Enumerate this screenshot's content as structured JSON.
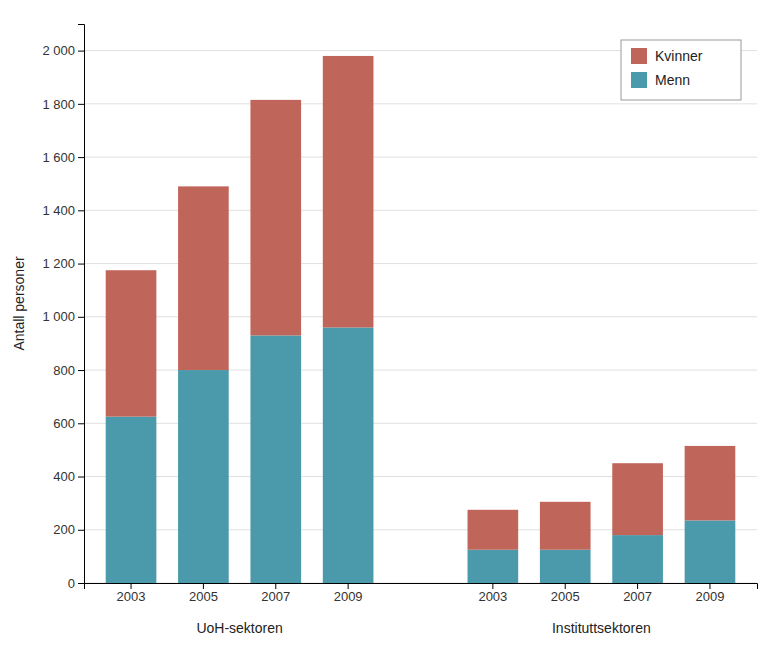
{
  "chart_data": {
    "type": "bar",
    "stacked": true,
    "categories": [
      "2003",
      "2005",
      "2007",
      "2009",
      "2003",
      "2005",
      "2007",
      "2009"
    ],
    "groups": [
      "UoH-sektoren",
      "Instituttsektoren"
    ],
    "series": [
      {
        "name": "Menn",
        "color": "#4a9aab",
        "values": [
          625,
          800,
          930,
          960,
          125,
          125,
          180,
          235
        ]
      },
      {
        "name": "Kvinner",
        "color": "#c0655a",
        "values": [
          550,
          690,
          885,
          1020,
          150,
          180,
          270,
          280
        ]
      }
    ],
    "ylabel": "Antall personer",
    "ylim": [
      0,
      2100
    ],
    "yticks": [
      0,
      200,
      400,
      600,
      800,
      {
        "value": 1000,
        "label": "1 000"
      },
      {
        "value": 1200,
        "label": "1 200"
      },
      {
        "value": 1400,
        "label": "1 400"
      },
      {
        "value": 1600,
        "label": "1 600"
      },
      {
        "value": 1800,
        "label": "1 800"
      },
      {
        "value": 2000,
        "label": "2 000"
      }
    ],
    "grid": true,
    "legend": "upper right"
  }
}
